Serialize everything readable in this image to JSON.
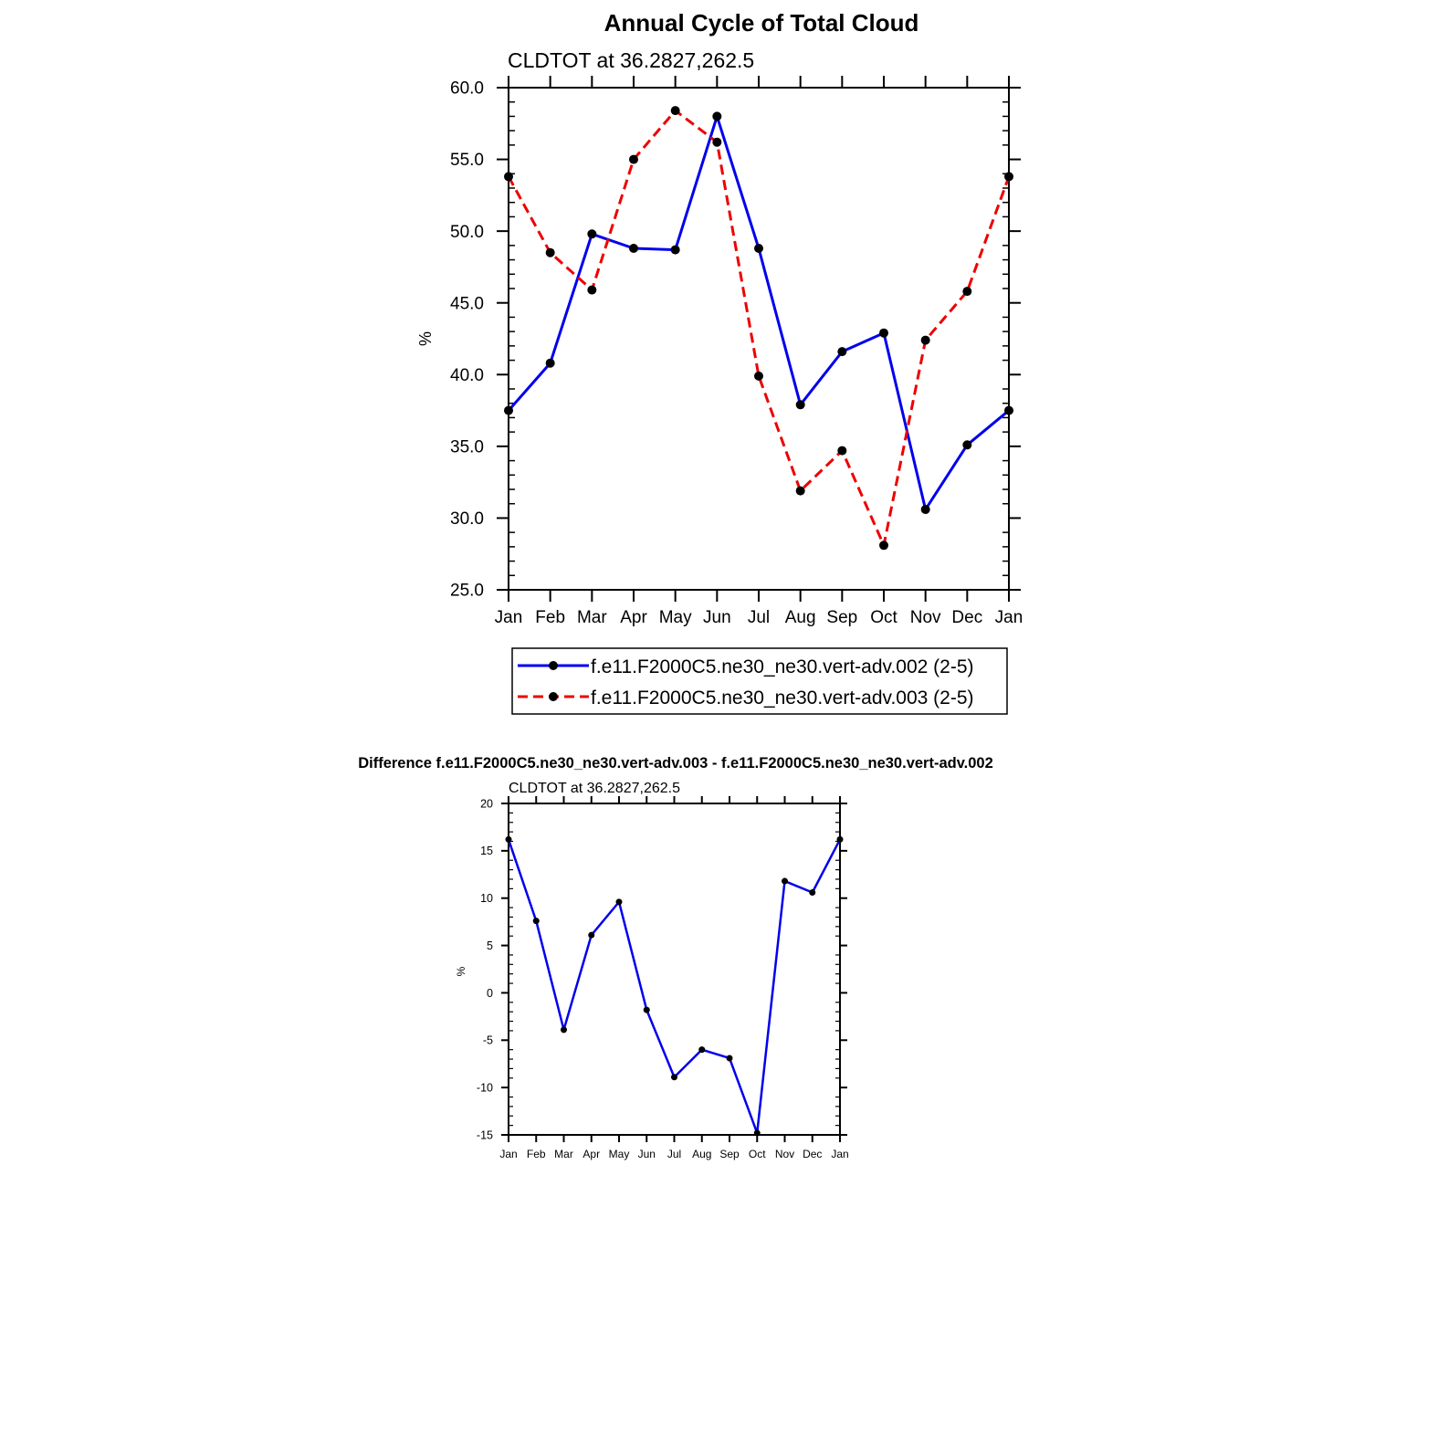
{
  "figure": {
    "title": "Annual Cycle of Total Cloud",
    "diff_title": "Difference f.e11.F2000C5.ne30_ne30.vert-adv.003 - f.e11.F2000C5.ne30_ne30.vert-adv.002"
  },
  "colors": {
    "series1": "#0000ee",
    "series2": "#ee0000",
    "marker": "#000000",
    "axis": "#000000"
  },
  "chart_data": [
    {
      "type": "line",
      "title": "CLDTOT at 36.2827,262.5",
      "ylabel": "%",
      "xlabel": "",
      "categories": [
        "Jan",
        "Feb",
        "Mar",
        "Apr",
        "May",
        "Jun",
        "Jul",
        "Aug",
        "Sep",
        "Oct",
        "Nov",
        "Dec",
        "Jan"
      ],
      "ylim": [
        25.0,
        60.0
      ],
      "yticks": [
        "25.0",
        "30.0",
        "35.0",
        "40.0",
        "45.0",
        "50.0",
        "55.0",
        "60.0"
      ],
      "legend_position": "bottom",
      "grid": false,
      "series": [
        {
          "name": "f.e11.F2000C5.ne30_ne30.vert-adv.002 (2-5)",
          "style": "solid",
          "color": "#0000ee",
          "values": [
            37.5,
            40.8,
            49.8,
            48.8,
            48.7,
            58.0,
            48.8,
            37.9,
            41.6,
            42.9,
            30.6,
            35.1,
            37.5
          ]
        },
        {
          "name": "f.e11.F2000C5.ne30_ne30.vert-adv.003 (2-5)",
          "style": "dashed",
          "color": "#ee0000",
          "values": [
            53.8,
            48.5,
            45.9,
            55.0,
            58.4,
            56.2,
            39.9,
            31.9,
            34.7,
            28.1,
            42.4,
            45.8,
            53.8
          ]
        }
      ]
    },
    {
      "type": "line",
      "title": "CLDTOT at 36.2827,262.5",
      "ylabel": "%",
      "xlabel": "",
      "categories": [
        "Jan",
        "Feb",
        "Mar",
        "Apr",
        "May",
        "Jun",
        "Jul",
        "Aug",
        "Sep",
        "Oct",
        "Nov",
        "Dec",
        "Jan"
      ],
      "ylim": [
        -15,
        20
      ],
      "yticks": [
        "-15",
        "-10",
        "-5",
        "0",
        "5",
        "10",
        "15",
        "20"
      ],
      "grid": false,
      "series": [
        {
          "style": "solid",
          "color": "#0000ee",
          "values": [
            16.2,
            7.6,
            -3.9,
            6.1,
            9.6,
            -1.8,
            -8.9,
            -6.0,
            -6.9,
            -14.8,
            11.8,
            10.6,
            16.2
          ]
        }
      ]
    }
  ]
}
